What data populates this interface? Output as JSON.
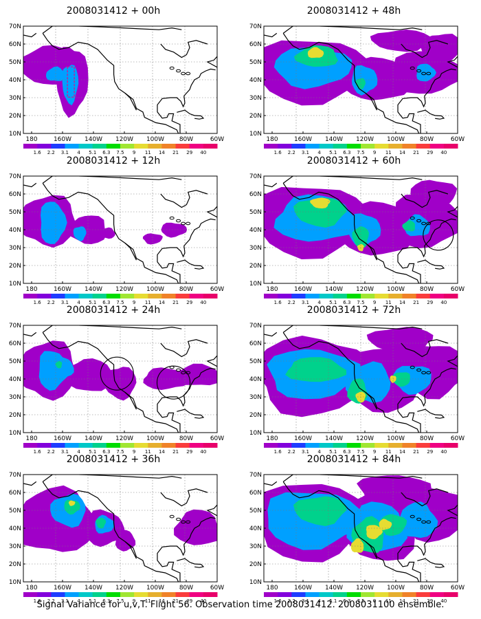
{
  "colorbar": {
    "labels": [
      "1.6",
      "2.2",
      "3.1",
      "4",
      "5.1",
      "6.3",
      "7.5",
      "9",
      "11",
      "14",
      "21",
      "29",
      "40"
    ],
    "colors": [
      "#a000c8",
      "#8200dc",
      "#1e3cff",
      "#00a0ff",
      "#00c8c8",
      "#00d28c",
      "#00dc00",
      "#a0e632",
      "#e6dc32",
      "#e6af2d",
      "#f08228",
      "#fa3c3c",
      "#f00082"
    ]
  },
  "axes": {
    "lat_labels": [
      "70N",
      "60N",
      "50N",
      "40N",
      "30N",
      "20N",
      "10N"
    ],
    "lon_labels": [
      "180",
      "160W",
      "140W",
      "120W",
      "100W",
      "80W",
      "60W"
    ]
  },
  "panels": [
    {
      "title": "2008031412 + 00h"
    },
    {
      "title": "2008031412 + 12h"
    },
    {
      "title": "2008031412 + 24h"
    },
    {
      "title": "2008031412 + 36h"
    },
    {
      "title": "2008031412 + 48h"
    },
    {
      "title": "2008031412 + 60h"
    },
    {
      "title": "2008031412 + 72h"
    },
    {
      "title": "2008031412 + 84h"
    }
  ],
  "footer": "Signal Variance for u,v,T. Flight 56. Observation time 2008031412. 2008031100 ensemble."
}
